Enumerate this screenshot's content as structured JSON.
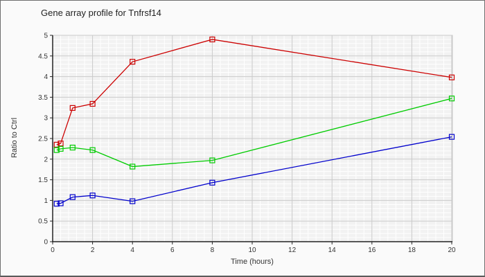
{
  "title": "Gene array profile for Tnfrsf14",
  "colors": {
    "panel_bg": "#fafafa",
    "plot_bg": "#f2f2f2",
    "grid_minor": "#ffffff",
    "grid_major": "#c9c9c9",
    "axis": "#222222",
    "tick_text": "#333333"
  },
  "chart_data": {
    "type": "line",
    "title": "Gene array profile for Tnfrsf14",
    "xlabel": "Time (hours)",
    "ylabel": "Ratio to Ctrl",
    "xlim": [
      0,
      20
    ],
    "ylim": [
      0,
      5
    ],
    "x_major_ticks": [
      0,
      2,
      4,
      6,
      8,
      10,
      12,
      14,
      16,
      18,
      20
    ],
    "x_tick_labels": [
      "0",
      "2",
      "4",
      "6",
      "8",
      "10",
      "12",
      "14",
      "16",
      "18",
      "20"
    ],
    "y_major_ticks": [
      0,
      0.5,
      1,
      1.5,
      2,
      2.5,
      3,
      3.5,
      4,
      4.5,
      5
    ],
    "y_tick_labels": [
      "0",
      "0.5",
      "1",
      "1.5",
      "2",
      "2.5",
      "3",
      "3.5",
      "4",
      "4.5",
      "5"
    ],
    "x_minor_step": 0.4,
    "y_minor_step": 0.1,
    "grid": "major-gray + minor-white",
    "legend": "none",
    "marker": "open-square",
    "x": [
      0.2,
      0.4,
      1,
      2,
      4,
      8,
      20
    ],
    "series": [
      {
        "name": "red",
        "color": "#cc0000",
        "values": [
          2.35,
          2.38,
          3.24,
          3.34,
          4.36,
          4.9,
          3.98
        ]
      },
      {
        "name": "green",
        "color": "#00cc00",
        "values": [
          2.22,
          2.25,
          2.28,
          2.22,
          1.82,
          1.97,
          3.47
        ]
      },
      {
        "name": "blue",
        "color": "#0000cc",
        "values": [
          0.92,
          0.93,
          1.08,
          1.12,
          0.98,
          1.43,
          2.54
        ]
      }
    ]
  }
}
